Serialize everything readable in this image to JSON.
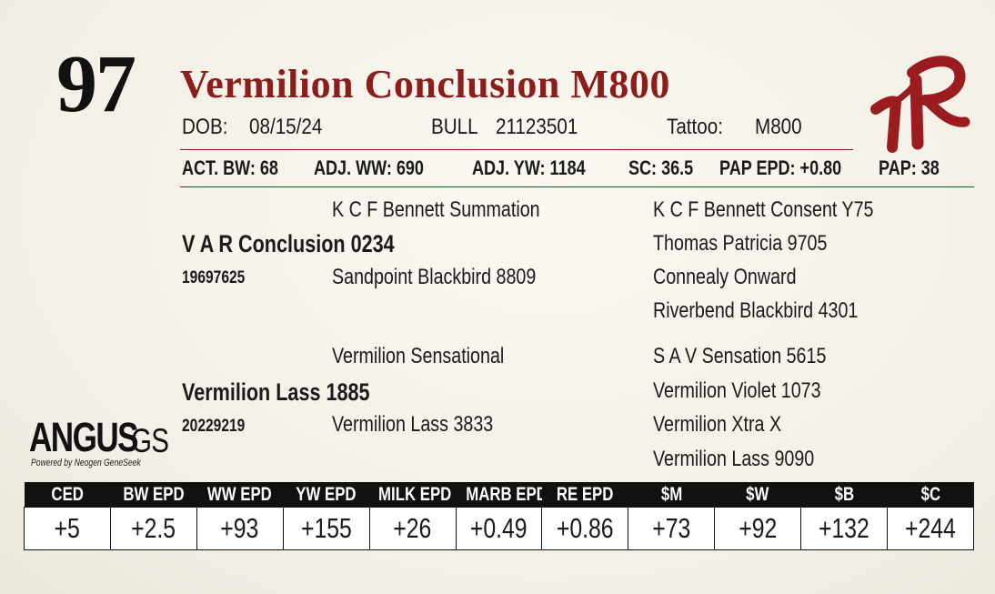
{
  "lot_number": "97",
  "animal_name": "Vermilion Conclusion M800",
  "info_row": {
    "dob_label": "DOB:",
    "dob_value": "08/15/24",
    "sex_label": "BULL",
    "reg_value": "21123501",
    "tattoo_label": "Tattoo:",
    "tattoo_value": "M800"
  },
  "stats_row": {
    "act_bw": "ACT. BW: 68",
    "adj_ww": "ADJ. WW: 690",
    "adj_yw": "ADJ. YW: 1184",
    "sc": "SC: 36.5",
    "pap_epd": "PAP EPD: +0.80",
    "pap": "PAP: 38"
  },
  "pedigree": {
    "sire": {
      "name": "V A R Conclusion 0234",
      "reg": "19697625",
      "sire": "K C F Bennett Summation",
      "dam": "Sandpoint Blackbird 8809",
      "sire_sire": "K C F Bennett Consent Y75",
      "sire_dam": "Thomas Patricia 9705",
      "dam_sire": "Connealy Onward",
      "dam_dam": "Riverbend Blackbird 4301"
    },
    "dam": {
      "name": "Vermilion Lass 1885",
      "reg": "20229219",
      "sire": "Vermilion Sensational",
      "dam": "Vermilion Lass 3833",
      "sire_sire": "S A V Sensation 5615",
      "sire_dam": "Vermilion Violet 1073",
      "dam_sire": "Vermilion Xtra X",
      "dam_dam": "Vermilion Lass 9090"
    }
  },
  "logo": {
    "angus_word": "ANGUS",
    "angus_gs": "GS",
    "angus_tagline": "Powered by Neogen GeneSeek",
    "brand_icon": "vr-brand-icon",
    "brand_color": "#9b1c1f"
  },
  "epd_table": {
    "headers": [
      "CED",
      "BW EPD",
      "WW EPD",
      "YW EPD",
      "MILK EPD",
      "MARB EPD",
      "RE EPD",
      "$M",
      "$W",
      "$B",
      "$C"
    ],
    "values": [
      "+5",
      "+2.5",
      "+93",
      "+155",
      "+26",
      "+0.49",
      "+0.86",
      "+73",
      "+92",
      "+132",
      "+244"
    ]
  },
  "colors": {
    "accent_red": "#8c1d1b",
    "header_black": "#111111",
    "background": "#f5f1e8"
  }
}
